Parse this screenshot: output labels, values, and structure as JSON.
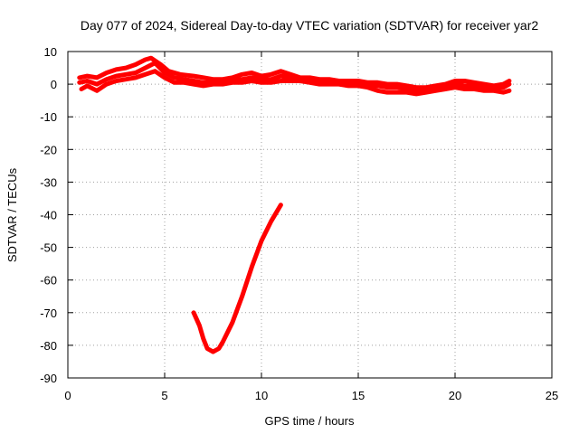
{
  "chart_data": {
    "type": "line",
    "title": "Day 077 of 2024, Sidereal Day-to-day VTEC variation (SDTVAR) for receiver yar2",
    "xlabel": "GPS time / hours",
    "ylabel": "SDTVAR / TECUs",
    "xlim": [
      0,
      25
    ],
    "ylim": [
      -90,
      10
    ],
    "xticks": [
      0,
      5,
      10,
      15,
      20,
      25
    ],
    "yticks": [
      10,
      0,
      -10,
      -20,
      -30,
      -40,
      -50,
      -60,
      -70,
      -80,
      -90
    ],
    "grid": true,
    "color": "#ff0000",
    "series": [
      {
        "name": "sdtvar-band-1",
        "x": [
          0.6,
          1.0,
          1.5,
          2.0,
          2.5,
          3.0,
          3.5,
          4.0,
          4.3,
          4.8,
          5.2,
          5.8,
          6.5,
          7.0,
          7.5,
          8.0,
          8.5,
          9.0,
          9.5,
          10.0,
          10.5,
          11.0,
          11.5,
          12.0,
          12.5,
          13.0,
          13.5,
          14.0,
          14.5,
          15.0,
          15.5,
          16.0,
          16.5,
          17.0,
          17.5,
          18.0,
          18.5,
          19.0,
          19.5,
          20.0,
          20.5,
          21.0,
          21.5,
          22.0,
          22.5,
          22.8
        ],
        "y": [
          2.0,
          2.5,
          2.0,
          3.5,
          4.5,
          5.0,
          6.0,
          7.5,
          8.0,
          6.0,
          4.0,
          3.0,
          2.5,
          2.0,
          1.5,
          1.5,
          2.0,
          3.0,
          3.5,
          2.5,
          3.0,
          4.0,
          3.0,
          2.0,
          2.0,
          1.5,
          1.5,
          1.0,
          1.0,
          1.0,
          0.5,
          0.5,
          0.0,
          0.0,
          -0.5,
          -1.0,
          -1.0,
          -0.5,
          0.0,
          1.0,
          1.0,
          0.5,
          0.0,
          -0.5,
          0.0,
          1.0
        ]
      },
      {
        "name": "sdtvar-band-2",
        "x": [
          0.6,
          1.0,
          1.5,
          2.0,
          2.5,
          3.0,
          3.5,
          4.0,
          4.5,
          5.0,
          5.5,
          6.0,
          6.5,
          7.0,
          7.5,
          8.0,
          8.5,
          9.0,
          9.5,
          10.0,
          10.5,
          11.0,
          11.5,
          12.0,
          12.5,
          13.0,
          13.5,
          14.0,
          14.5,
          15.0,
          15.5,
          16.0,
          16.5,
          17.0,
          17.5,
          18.0,
          18.5,
          19.0,
          19.5,
          20.0,
          20.5,
          21.0,
          21.5,
          22.0,
          22.5,
          22.8
        ],
        "y": [
          0.5,
          1.0,
          0.0,
          1.5,
          2.5,
          3.0,
          3.5,
          5.0,
          6.5,
          3.5,
          2.0,
          1.5,
          1.0,
          0.5,
          0.5,
          0.5,
          1.0,
          1.5,
          2.0,
          1.5,
          1.5,
          2.5,
          2.0,
          1.5,
          1.5,
          1.0,
          0.5,
          0.5,
          0.0,
          0.0,
          -0.5,
          -0.5,
          -1.0,
          -1.0,
          -1.5,
          -2.0,
          -2.0,
          -1.5,
          -1.0,
          0.0,
          -0.5,
          -0.5,
          -1.0,
          -1.0,
          -1.0,
          0.0
        ]
      },
      {
        "name": "sdtvar-band-3",
        "x": [
          0.7,
          1.0,
          1.5,
          2.0,
          2.5,
          3.0,
          3.5,
          4.0,
          4.5,
          5.0,
          5.5,
          6.0,
          6.5,
          7.0,
          7.5,
          8.0,
          8.5,
          9.0,
          9.5,
          10.0,
          10.5,
          11.0,
          11.5,
          12.0,
          12.5,
          13.0,
          13.5,
          14.0,
          14.5,
          15.0,
          15.5,
          16.0,
          16.5,
          17.0,
          17.5,
          18.0,
          18.5,
          19.0,
          19.5,
          20.0,
          20.5,
          21.0,
          21.5,
          22.0,
          22.5,
          22.8
        ],
        "y": [
          -1.5,
          -0.5,
          -2.0,
          0.0,
          1.0,
          1.5,
          2.0,
          3.0,
          4.0,
          2.0,
          0.5,
          0.5,
          0.0,
          -0.5,
          0.0,
          0.0,
          0.5,
          0.5,
          1.0,
          0.5,
          0.5,
          1.0,
          1.0,
          1.0,
          0.5,
          0.0,
          0.0,
          0.0,
          -0.5,
          -0.5,
          -1.0,
          -2.0,
          -2.5,
          -2.5,
          -2.5,
          -3.0,
          -2.5,
          -2.0,
          -1.5,
          -1.0,
          -1.5,
          -1.5,
          -2.0,
          -2.0,
          -2.5,
          -2.0
        ]
      },
      {
        "name": "sdtvar-dip",
        "x": [
          6.5,
          6.8,
          7.0,
          7.2,
          7.5,
          7.8,
          8.0,
          8.5,
          9.0,
          9.5,
          10.0,
          10.5,
          11.0
        ],
        "y": [
          -70,
          -74,
          -78,
          -81,
          -82,
          -81,
          -79,
          -73,
          -65,
          -56,
          -48,
          -42,
          -37
        ]
      }
    ]
  }
}
